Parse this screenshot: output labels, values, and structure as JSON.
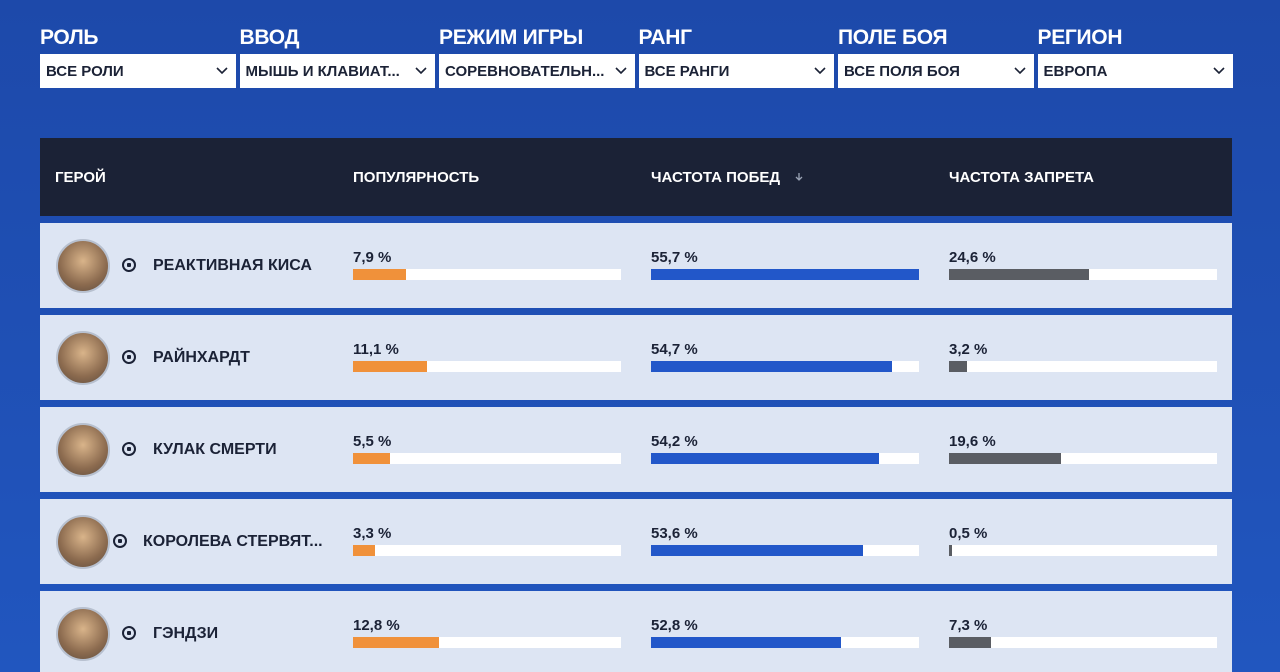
{
  "filters": [
    {
      "label": "РОЛЬ",
      "value": "ВСЕ РОЛИ"
    },
    {
      "label": "ВВОД",
      "value": "МЫШЬ И КЛАВИАТ..."
    },
    {
      "label": "РЕЖИМ ИГРЫ",
      "value": "СОРЕВНОВАТЕЛЬН..."
    },
    {
      "label": "РАНГ",
      "value": "ВСЕ РАНГИ"
    },
    {
      "label": "ПОЛЕ БОЯ",
      "value": "ВСЕ ПОЛЯ БОЯ"
    },
    {
      "label": "РЕГИОН",
      "value": "ЕВРОПА"
    }
  ],
  "table": {
    "columns": [
      "ГЕРОЙ",
      "ПОПУЛЯРНОСТЬ",
      "ЧАСТОТА ПОБЕД",
      "ЧАСТОТА ЗАПРЕТА"
    ],
    "bars": [
      {
        "color": "#f0913a",
        "range": [
          0,
          40
        ]
      },
      {
        "color": "#2257c9",
        "range": [
          45.7,
          55.7
        ]
      },
      {
        "color": "#5a5d63",
        "range": [
          0,
          47
        ]
      }
    ],
    "rows": [
      {
        "hero": "РЕАКТИВНАЯ КИСА",
        "stats": [
          {
            "value": 7.9,
            "label": "7,9 %"
          },
          {
            "value": 55.7,
            "label": "55,7 %"
          },
          {
            "value": 24.6,
            "label": "24,6 %"
          }
        ]
      },
      {
        "hero": "РАЙНХАРДТ",
        "stats": [
          {
            "value": 11.1,
            "label": "11,1 %"
          },
          {
            "value": 54.7,
            "label": "54,7 %"
          },
          {
            "value": 3.2,
            "label": "3,2 %"
          }
        ]
      },
      {
        "hero": "КУЛАК СМЕРТИ",
        "stats": [
          {
            "value": 5.5,
            "label": "5,5 %"
          },
          {
            "value": 54.2,
            "label": "54,2 %"
          },
          {
            "value": 19.6,
            "label": "19,6 %"
          }
        ]
      },
      {
        "hero": "КОРОЛЕВА СТЕРВЯТ...",
        "stats": [
          {
            "value": 3.3,
            "label": "3,3 %"
          },
          {
            "value": 53.6,
            "label": "53,6 %"
          },
          {
            "value": 0.5,
            "label": "0,5 %"
          }
        ]
      },
      {
        "hero": "ГЭНДЗИ",
        "stats": [
          {
            "value": 12.8,
            "label": "12,8 %"
          },
          {
            "value": 52.8,
            "label": "52,8 %"
          },
          {
            "value": 7.3,
            "label": "7,3 %"
          }
        ]
      }
    ]
  }
}
